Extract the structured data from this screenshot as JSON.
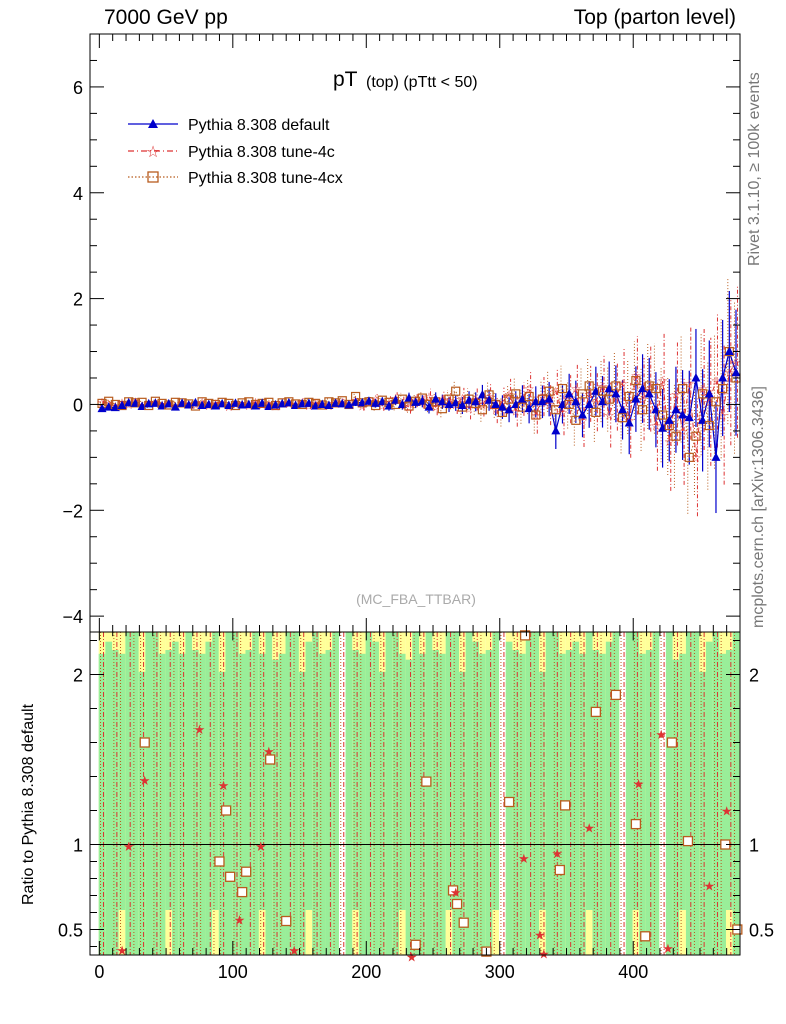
{
  "header": {
    "left": "7000 GeV pp",
    "right": "Top (parton level)"
  },
  "side_labels": {
    "rivet": "Rivet 3.1.10, ≥ 100k events",
    "mcplots": "mcplots.cern.ch [arXiv:1306.3436]"
  },
  "ratio_panel": {
    "ylabel": "Ratio to Pythia 8.308 default",
    "ylim": [
      0.35,
      2.25
    ],
    "yticks": [
      "0.5",
      "1",
      "2"
    ],
    "band_colors": {
      "inner": "#99ee99",
      "outer": "#ffff99"
    }
  },
  "colors": {
    "default": "#0000cc",
    "tune4c": "#dd3333",
    "tune4cx": "#b85c1e"
  },
  "chart_data": {
    "type": "scatter",
    "title": "pT (top) (pTtt < 50)",
    "title_main": "pT",
    "title_sub": "(top) (pTtt < 50)",
    "watermark": "(MC_FBA_TTBAR)",
    "xlim": [
      -7,
      480
    ],
    "ylim": [
      -4.3,
      7.0
    ],
    "xticks": [
      "0",
      "100",
      "200",
      "300",
      "400"
    ],
    "yticks": [
      "−4",
      "−2",
      "0",
      "2",
      "4",
      "6"
    ],
    "legend_position": "top-left",
    "x": [
      2,
      7,
      12,
      17,
      22,
      27,
      32,
      37,
      42,
      47,
      52,
      57,
      62,
      67,
      72,
      77,
      82,
      87,
      92,
      97,
      102,
      107,
      112,
      117,
      122,
      127,
      132,
      137,
      142,
      147,
      152,
      157,
      162,
      167,
      172,
      177,
      182,
      187,
      192,
      197,
      202,
      207,
      212,
      217,
      222,
      227,
      232,
      237,
      242,
      247,
      252,
      257,
      262,
      267,
      272,
      277,
      282,
      287,
      292,
      297,
      302,
      307,
      312,
      317,
      322,
      327,
      332,
      337,
      342,
      347,
      352,
      357,
      362,
      367,
      372,
      377,
      382,
      387,
      392,
      397,
      402,
      407,
      412,
      417,
      422,
      427,
      432,
      437,
      442,
      447,
      452,
      457,
      462,
      467,
      472,
      477
    ],
    "series": [
      {
        "name": "Pythia 8.308 default",
        "values": [
          -0.08,
          -0.05,
          -0.06,
          -0.02,
          0.03,
          0.02,
          -0.04,
          0.01,
          0.02,
          -0.03,
          0.01,
          -0.05,
          0.02,
          -0.01,
          0.03,
          -0.02,
          0.0,
          -0.03,
          0.01,
          -0.02,
          0.02,
          -0.01,
          0.0,
          -0.03,
          0.02,
          -0.04,
          -0.01,
          0.01,
          0.03,
          -0.02,
          0.01,
          0.02,
          -0.03,
          0.0,
          -0.02,
          0.02,
          0.01,
          -0.01,
          0.04,
          0.03,
          0.06,
          0.02,
          0.05,
          -0.03,
          0.08,
          0.0,
          0.12,
          0.04,
          0.06,
          -0.05,
          0.1,
          0.05,
          0.0,
          0.03,
          -0.02,
          0.08,
          0.05,
          0.18,
          0.08,
          0.0,
          -0.05,
          -0.1,
          0.0,
          0.1,
          -0.08,
          0.05,
          0.05,
          0.1,
          -0.5,
          0.0,
          0.2,
          0.05,
          -0.2,
          0.0,
          0.25,
          0.05,
          0.3,
          0.2,
          -0.1,
          -0.35,
          0.1,
          0.3,
          0.2,
          -0.1,
          -0.45,
          -0.3,
          -0.1,
          -0.2,
          -0.25,
          0.5,
          -0.3,
          0.2,
          -1.0,
          0.5,
          1.0,
          0.6
        ],
        "marker": "triangle"
      },
      {
        "name": "Pythia 8.308 tune-4c",
        "values": [
          0.05,
          0.02,
          -0.03,
          0.04,
          0.0,
          0.06,
          -0.02,
          0.03,
          0.05,
          0.0,
          0.02,
          -0.03,
          0.04,
          0.01,
          0.0,
          0.05,
          -0.02,
          0.02,
          0.03,
          -0.04,
          0.01,
          0.02,
          -0.02,
          0.05,
          0.0,
          0.02,
          -0.03,
          0.04,
          0.02,
          0.0,
          0.05,
          -0.02,
          0.03,
          0.01,
          -0.02,
          0.02,
          0.05,
          0.0,
          0.07,
          -0.03,
          0.05,
          0.1,
          -0.02,
          0.05,
          0.12,
          0.03,
          -0.05,
          0.08,
          0.06,
          0.15,
          -0.05,
          0.1,
          0.08,
          0.0,
          0.12,
          -0.08,
          0.1,
          0.0,
          0.15,
          -0.1,
          0.05,
          0.2,
          -0.12,
          0.1,
          0.3,
          -0.2,
          0.15,
          0.0,
          0.25,
          -0.15,
          0.1,
          0.3,
          -0.3,
          0.2,
          0.05,
          0.35,
          -0.2,
          0.15,
          0.4,
          -0.3,
          0.55,
          0.1,
          0.3,
          -0.4,
          0.45,
          -0.7,
          0.2,
          -0.5,
          0.4,
          -1.0,
          0.3,
          0.05,
          0.45,
          -0.2,
          0.6,
          0.8
        ],
        "marker": "star"
      },
      {
        "name": "Pythia 8.308 tune-4cx",
        "values": [
          0.02,
          0.06,
          0.0,
          -0.02,
          0.05,
          0.03,
          0.04,
          -0.02,
          0.06,
          0.02,
          -0.01,
          0.04,
          0.03,
          0.01,
          -0.03,
          0.05,
          0.02,
          0.0,
          0.04,
          0.02,
          -0.02,
          0.03,
          0.05,
          0.0,
          0.02,
          0.04,
          -0.02,
          0.03,
          0.05,
          0.01,
          0.0,
          0.04,
          0.02,
          -0.01,
          0.05,
          0.03,
          0.07,
          0.0,
          0.15,
          0.03,
          0.05,
          -0.02,
          0.08,
          0.04,
          0.0,
          0.1,
          -0.03,
          0.06,
          0.12,
          0.0,
          0.05,
          -0.08,
          0.1,
          0.25,
          -0.05,
          0.1,
          0.02,
          -0.1,
          0.18,
          0.0,
          -0.15,
          0.1,
          0.2,
          -0.05,
          0.15,
          -0.2,
          0.1,
          0.25,
          -0.1,
          0.3,
          0.0,
          -0.3,
          0.2,
          0.35,
          -0.15,
          0.25,
          0.1,
          0.35,
          -0.25,
          0.15,
          0.45,
          -0.1,
          0.35,
          0.3,
          -0.2,
          -0.4,
          -0.6,
          0.3,
          -1.0,
          -0.6,
          0.2,
          -0.4,
          0.05,
          0.3,
          1.0,
          0.5
        ],
        "marker": "open-square"
      }
    ],
    "ratio_x": [
      17,
      22,
      34,
      34,
      75,
      90,
      93,
      95,
      98,
      105,
      107,
      110,
      121,
      127,
      128,
      140,
      146,
      234,
      237,
      245,
      265,
      267,
      268,
      273,
      290,
      307,
      318,
      319,
      330,
      333,
      343,
      345,
      349,
      367,
      372,
      387,
      402,
      404,
      409,
      421,
      426,
      429,
      441,
      457,
      469,
      470,
      478
    ],
    "ratio_y": [
      0.38,
      0.99,
      1.38,
      1.6,
      1.68,
      0.9,
      1.35,
      1.2,
      0.81,
      0.56,
      0.72,
      0.84,
      0.99,
      1.55,
      1.5,
      0.55,
      0.38,
      0.34,
      0.41,
      1.37,
      0.73,
      0.72,
      0.65,
      0.54,
      0.37,
      1.25,
      0.92,
      2.23,
      0.47,
      0.36,
      0.95,
      0.85,
      1.23,
      1.1,
      1.78,
      1.88,
      1.12,
      1.36,
      0.46,
      1.65,
      0.39,
      1.6,
      1.02,
      0.76,
      1.0,
      1.2,
      0.5
    ],
    "ratio_series_of_point": [
      1,
      1,
      1,
      2,
      1,
      2,
      1,
      2,
      2,
      1,
      2,
      2,
      1,
      1,
      2,
      2,
      1,
      1,
      2,
      2,
      2,
      1,
      2,
      2,
      2,
      2,
      1,
      2,
      1,
      1,
      1,
      2,
      2,
      1,
      2,
      2,
      2,
      1,
      2,
      1,
      1,
      2,
      2,
      1,
      2,
      1,
      2
    ]
  }
}
